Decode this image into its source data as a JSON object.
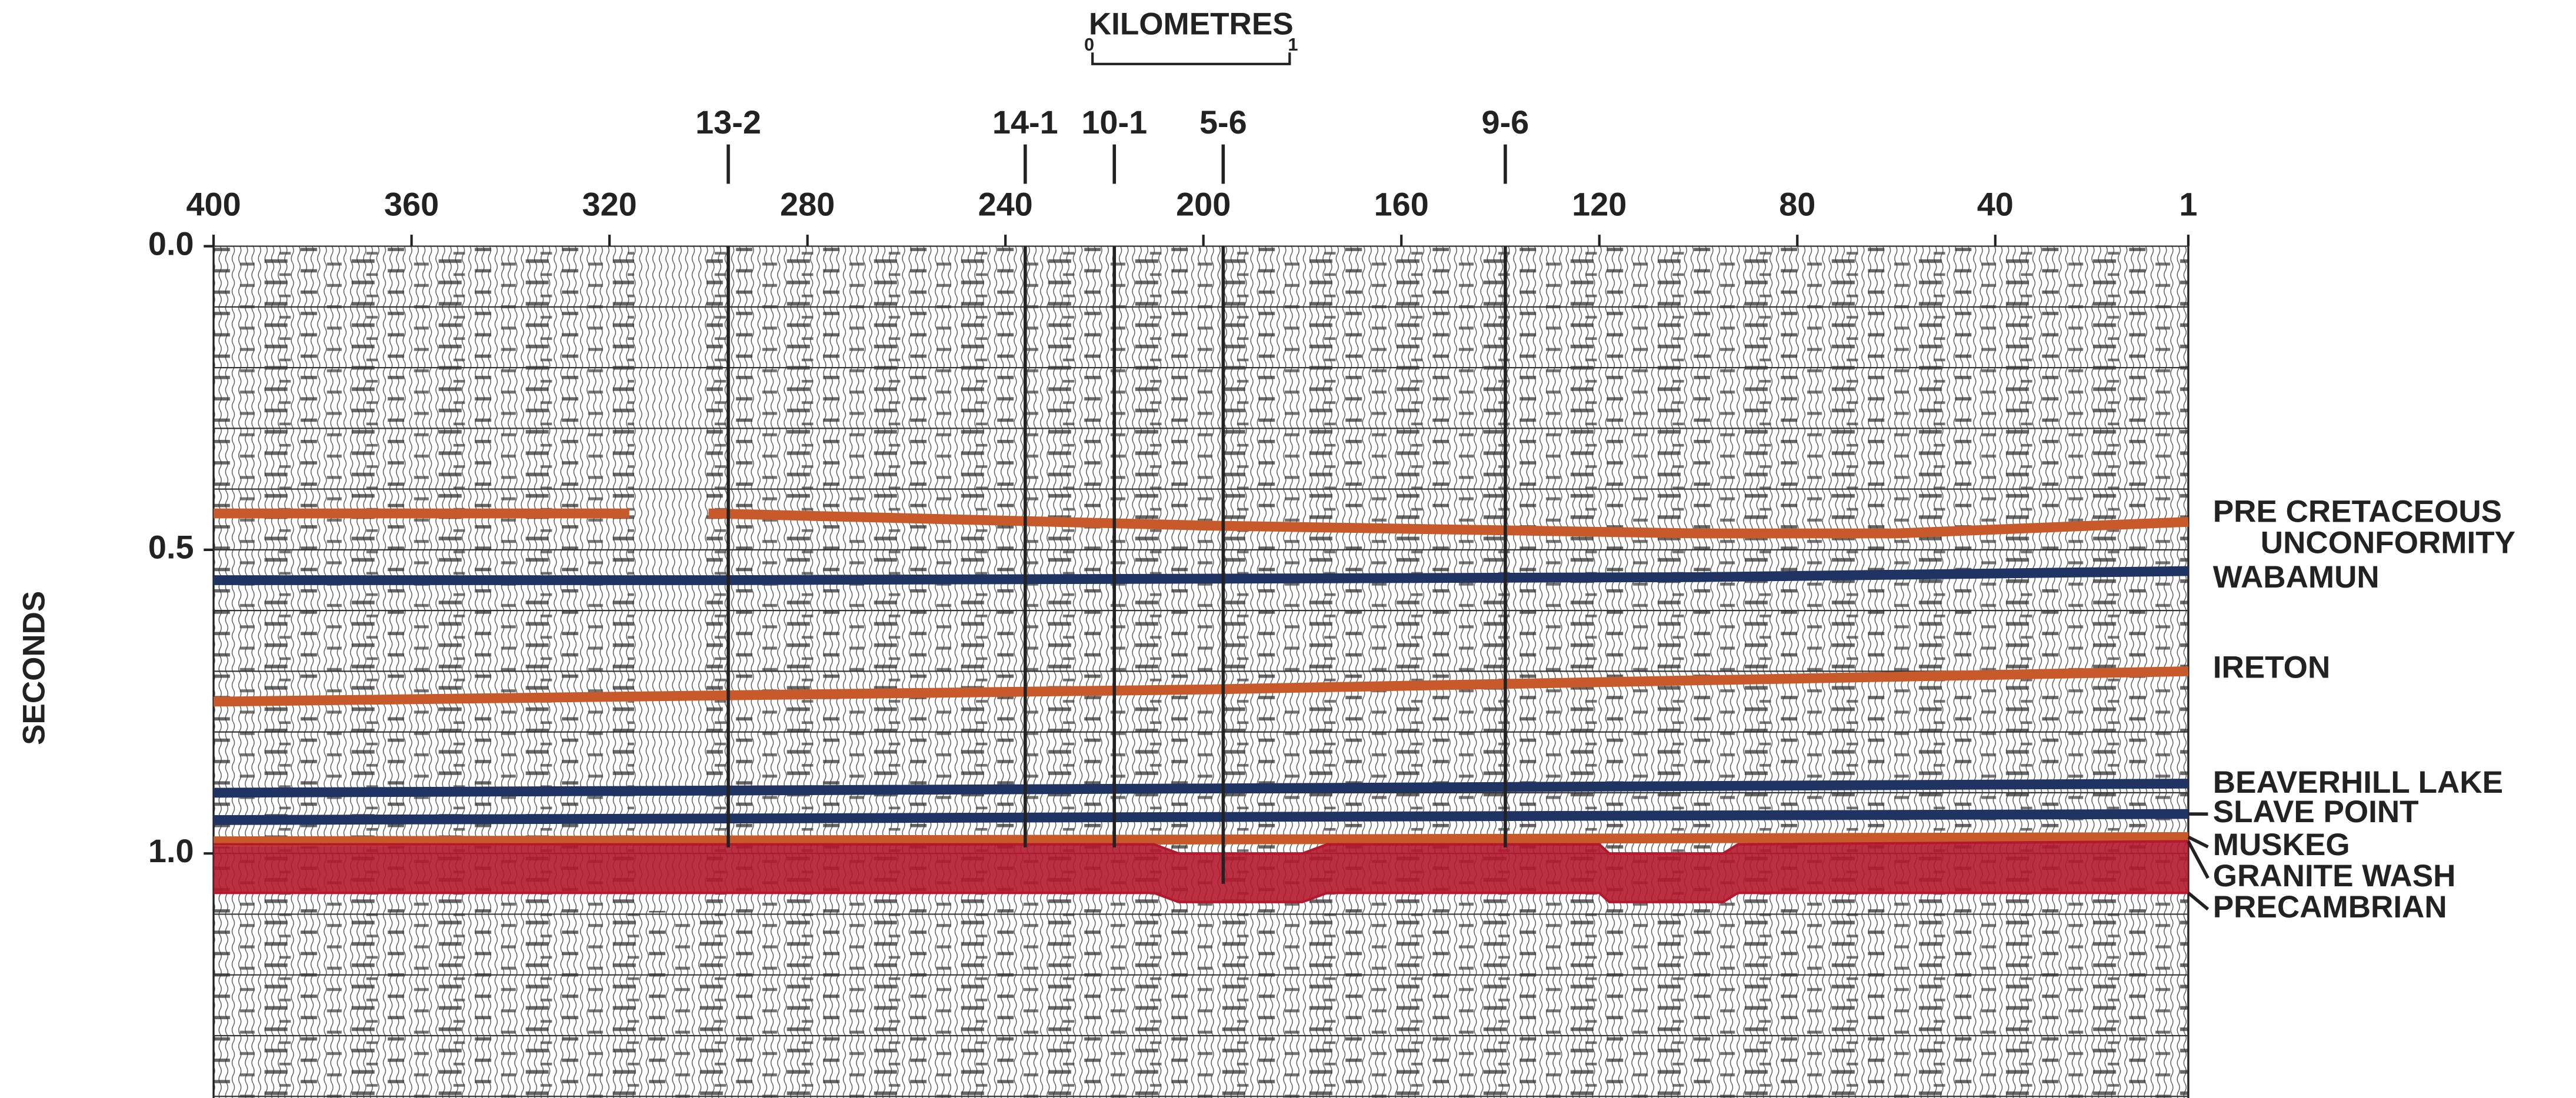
{
  "chart_data": {
    "type": "line",
    "scale_bar": {
      "label": "KILOMETRES",
      "ticks": [
        0,
        1
      ]
    },
    "y_label": "SECONDS",
    "xlim": [
      400,
      1
    ],
    "xticks": [
      400,
      360,
      320,
      280,
      240,
      200,
      160,
      120,
      80,
      40,
      1
    ],
    "ylim": [
      0,
      1.4
    ],
    "yticks": [
      {
        "value": 0,
        "label": "0.0"
      },
      0.5,
      {
        "value": 1,
        "label": "1.0"
      }
    ],
    "minor_grid": 0.1,
    "wells": [
      {
        "name": "13-2",
        "x": 296,
        "depth": 0.99
      },
      {
        "name": "14-1",
        "x": 236,
        "depth": 0.99
      },
      {
        "name": "10-1",
        "x": 218,
        "depth": 0.99
      },
      {
        "name": "5-6",
        "x": 196,
        "depth": 1.05
      },
      {
        "name": "9-6",
        "x": 139,
        "depth": 0.99
      }
    ],
    "series": [
      {
        "name": "PRE CRETACEOUS UNCONFORMITY",
        "color": "#c8592a",
        "x": [
          400,
          316,
          308,
          300,
          200,
          100,
          60,
          1
        ],
        "values": [
          0.44,
          0.44,
          null,
          0.44,
          0.46,
          0.473,
          0.473,
          0.454
        ]
      },
      {
        "name": "WABAMUN",
        "color": "#1f3462",
        "x": [
          400,
          300,
          100,
          1
        ],
        "values": [
          0.55,
          0.55,
          0.545,
          0.535
        ]
      },
      {
        "name": "IRETON",
        "color": "#c8592a",
        "x": [
          400,
          200,
          1
        ],
        "values": [
          0.75,
          0.73,
          0.7
        ]
      },
      {
        "name": "BEAVERHILL LAKE",
        "color": "#1f3462",
        "x": [
          400,
          200,
          1
        ],
        "values": [
          0.9,
          0.893,
          0.885
        ]
      },
      {
        "name": "SLAVE POINT",
        "color": "#1f3462",
        "x": [
          400,
          200,
          1
        ],
        "values": [
          0.945,
          0.94,
          0.935
        ]
      },
      {
        "name": "MUSKEG",
        "color": "#c8592a",
        "x": [
          400,
          200,
          1
        ],
        "values": [
          0.98,
          0.977,
          0.973
        ]
      },
      {
        "name": "GRANITE WASH",
        "color": "#b3182d",
        "x": [
          400,
          210,
          205,
          180,
          175,
          120,
          118,
          95,
          92,
          1
        ],
        "values": [
          0.985,
          0.985,
          1.0,
          1.0,
          0.985,
          0.985,
          1.0,
          1.0,
          0.985,
          0.98
        ]
      },
      {
        "name": "PRECAMBRIAN",
        "color": "#b3182d",
        "x": [
          400,
          210,
          205,
          180,
          175,
          120,
          118,
          95,
          92,
          1
        ],
        "values": [
          1.065,
          1.065,
          1.08,
          1.08,
          1.065,
          1.065,
          1.08,
          1.08,
          1.065,
          1.065
        ]
      }
    ]
  }
}
